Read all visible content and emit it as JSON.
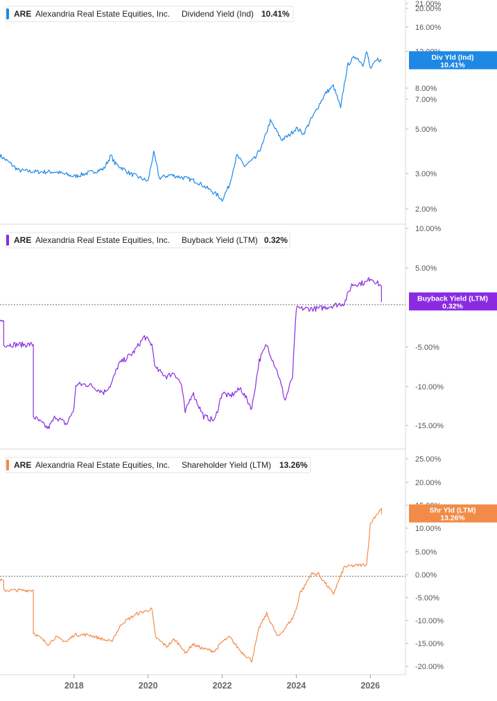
{
  "colors": {
    "blue": "#1e88e5",
    "purple": "#8a2be2",
    "orange": "#f28b47",
    "grid": "#d9d9d9",
    "axis_text": "#555555"
  },
  "chart_data": [
    {
      "type": "line",
      "title": "ARE  Alexandria Real Estate Equities, Inc.  Dividend Yield (Ind)  10.41%",
      "ticker": "ARE",
      "company": "Alexandria Real Estate Equities, Inc.",
      "metric": "Dividend Yield (Ind)",
      "last_value": "10.41%",
      "badge_top": "Div Yld (Ind)",
      "badge_bottom": "10.41%",
      "scale": "log",
      "ylim": [
        1.6,
        21
      ],
      "y_ticks": [
        "21.00%",
        "20.00%",
        "16.00%",
        "12.00%",
        "8.00%",
        "7.00%",
        "5.00%",
        "3.00%",
        "2.00%"
      ],
      "color": "#1e88e5",
      "series": [
        {
          "x": [
            2016.0,
            2016.5,
            2017.0,
            2017.5,
            2018.0,
            2018.5,
            2018.8,
            2019.0,
            2019.1,
            2019.5,
            2019.8,
            2020.0,
            2020.15,
            2020.3,
            2020.6,
            2021.0,
            2021.3,
            2021.6,
            2021.9,
            2022.0,
            2022.2,
            2022.4,
            2022.6,
            2022.9,
            2023.1,
            2023.3,
            2023.6,
            2023.8,
            2024.0,
            2024.2,
            2024.5,
            2024.8,
            2025.0,
            2025.2,
            2025.4,
            2025.6,
            2025.8,
            2025.9,
            2026.0,
            2026.2,
            2026.3
          ],
          "values": [
            3.5,
            2.95,
            2.9,
            2.9,
            2.75,
            2.9,
            3.0,
            3.5,
            3.2,
            2.85,
            2.7,
            2.6,
            3.6,
            2.7,
            2.8,
            2.7,
            2.6,
            2.4,
            2.2,
            2.1,
            2.5,
            3.5,
            3.1,
            3.4,
            4.0,
            5.2,
            4.2,
            4.4,
            4.8,
            4.5,
            5.7,
            7.2,
            7.8,
            6.0,
            10.0,
            11.0,
            10.0,
            11.6,
            9.5,
            10.6,
            10.41
          ]
        }
      ]
    },
    {
      "type": "line",
      "title": "ARE  Alexandria Real Estate Equities, Inc.  Buyback Yield (LTM)  0.32%",
      "ticker": "ARE",
      "company": "Alexandria Real Estate Equities, Inc.",
      "metric": "Buyback Yield (LTM)",
      "last_value": "0.32%",
      "badge_top": "Buyback Yield (LTM)",
      "badge_bottom": "0.32%",
      "ylim": [
        -18,
        10
      ],
      "y_ticks": [
        "10.00%",
        "5.00%",
        "-5.00%",
        "-10.00%",
        "-15.00%"
      ],
      "reference_line": 0,
      "color": "#8a2be2",
      "series": [
        {
          "x": [
            2016.0,
            2016.1,
            2016.1,
            2016.9,
            2016.9,
            2017.3,
            2017.5,
            2017.8,
            2018.0,
            2018.05,
            2018.4,
            2018.8,
            2019.0,
            2019.2,
            2019.6,
            2019.9,
            2020.1,
            2020.2,
            2020.5,
            2020.7,
            2020.9,
            2021.0,
            2021.2,
            2021.5,
            2021.8,
            2022.0,
            2022.2,
            2022.5,
            2022.8,
            2023.0,
            2023.2,
            2023.5,
            2023.7,
            2023.9,
            2024.0,
            2024.1,
            2024.6,
            2025.3,
            2025.5,
            2025.9,
            2026.0,
            2026.3,
            2026.3
          ],
          "values": [
            -2.0,
            -2.0,
            -5.0,
            -5.0,
            -14.0,
            -15.5,
            -14.0,
            -15.0,
            -13.0,
            -10.0,
            -10.0,
            -11.0,
            -10.0,
            -7.5,
            -6.0,
            -4.0,
            -5.0,
            -8.0,
            -9.0,
            -8.5,
            -10.0,
            -13.5,
            -11.0,
            -14.0,
            -14.5,
            -11.0,
            -11.5,
            -10.5,
            -13.0,
            -7.0,
            -5.0,
            -8.5,
            -12.0,
            -9.0,
            -0.5,
            -0.5,
            -0.5,
            0.2,
            2.5,
            2.8,
            3.4,
            2.3,
            0.32
          ]
        }
      ]
    },
    {
      "type": "line",
      "title": "ARE  Alexandria Real Estate Equities, Inc.  Shareholder Yield (LTM)  13.26%",
      "ticker": "ARE",
      "company": "Alexandria Real Estate Equities, Inc.",
      "metric": "Shareholder Yield (LTM)",
      "last_value": "13.26%",
      "badge_top": "Shr Yld (LTM)",
      "badge_bottom": "13.26%",
      "ylim": [
        -21,
        27
      ],
      "y_ticks": [
        "25.00%",
        "20.00%",
        "15.00%",
        "10.00%",
        "5.00%",
        "0.00%",
        "-5.00%",
        "-10.00%",
        "-15.00%",
        "-20.00%"
      ],
      "reference_line": 0,
      "color": "#f28b47",
      "series": [
        {
          "x": [
            2016.0,
            2016.1,
            2016.1,
            2016.9,
            2016.9,
            2017.3,
            2017.5,
            2017.8,
            2018.0,
            2018.4,
            2018.8,
            2019.0,
            2019.3,
            2019.7,
            2019.9,
            2020.1,
            2020.2,
            2020.5,
            2020.7,
            2020.9,
            2021.0,
            2021.2,
            2021.5,
            2021.8,
            2022.0,
            2022.2,
            2022.5,
            2022.8,
            2023.0,
            2023.2,
            2023.5,
            2023.7,
            2023.9,
            2024.0,
            2024.1,
            2024.2,
            2024.4,
            2024.6,
            2025.0,
            2025.3,
            2025.5,
            2025.9,
            2026.0,
            2026.1,
            2026.3,
            2026.3
          ],
          "values": [
            -0.8,
            -1.0,
            -3.0,
            -3.0,
            -12.0,
            -14.5,
            -13.0,
            -14.0,
            -12.5,
            -12.5,
            -13.5,
            -14.0,
            -10.0,
            -8.0,
            -7.5,
            -7.0,
            -13.0,
            -15.0,
            -13.5,
            -15.0,
            -16.5,
            -14.5,
            -15.5,
            -16.0,
            -14.0,
            -13.0,
            -16.0,
            -18.0,
            -11.0,
            -8.0,
            -13.0,
            -11.0,
            -9.0,
            -7.0,
            -3.5,
            -2.5,
            0.5,
            0.5,
            -3.8,
            2.0,
            2.2,
            2.5,
            11.0,
            12.5,
            14.5,
            13.26
          ]
        }
      ]
    }
  ],
  "x_axis": {
    "tick_labels": [
      "2018",
      "2020",
      "2022",
      "2024",
      "2026"
    ]
  }
}
